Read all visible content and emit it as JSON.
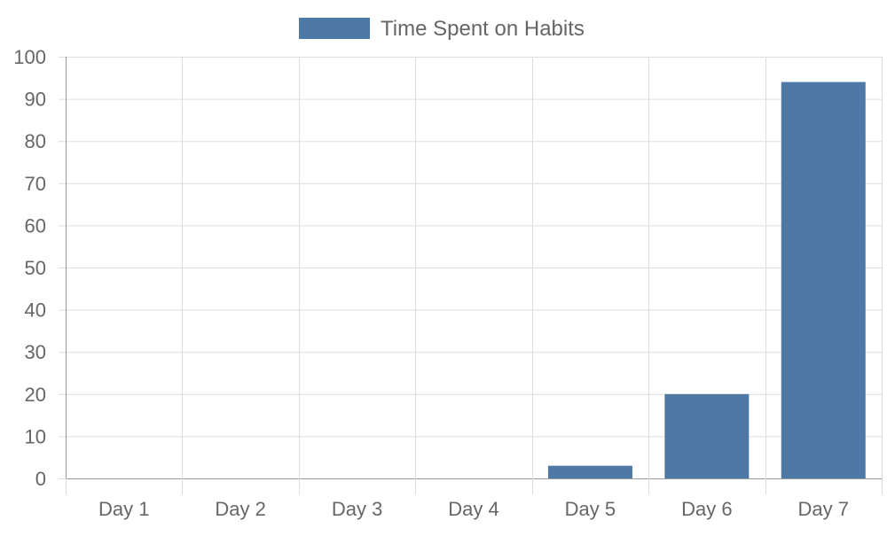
{
  "chart_data": {
    "type": "bar",
    "categories": [
      "Day 1",
      "Day 2",
      "Day 3",
      "Day 4",
      "Day 5",
      "Day 6",
      "Day 7"
    ],
    "series": [
      {
        "name": "Time Spent on Habits",
        "values": [
          0,
          0,
          0,
          0,
          3,
          20,
          94
        ],
        "color": "#4e79a7"
      }
    ],
    "ylim": [
      0,
      100
    ],
    "yticks": [
      0,
      10,
      20,
      30,
      40,
      50,
      60,
      70,
      80,
      90,
      100
    ],
    "grid": true,
    "legend": "top-center",
    "colors": {
      "grid": "#dddddd",
      "axis": "#999999",
      "text": "#666666"
    }
  }
}
